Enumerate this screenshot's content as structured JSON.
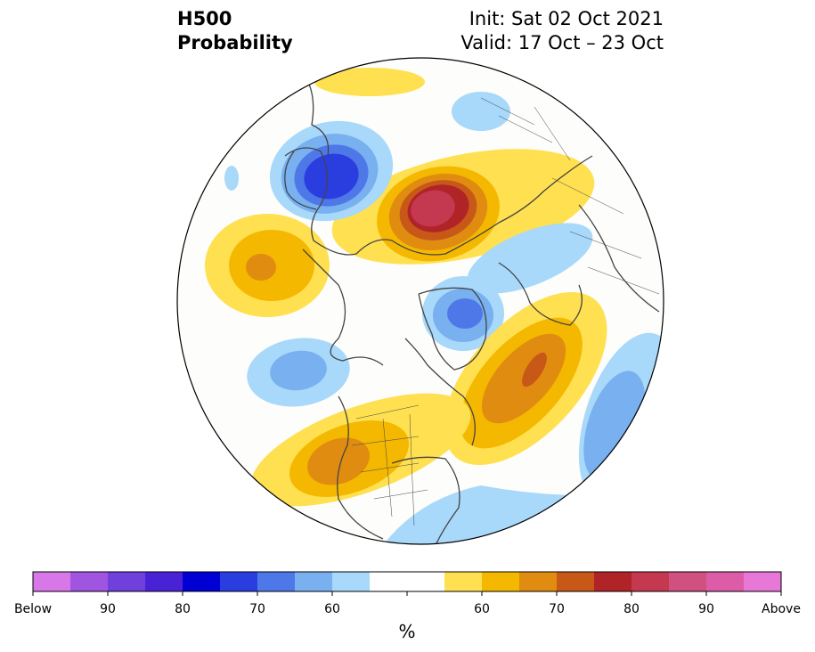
{
  "title": {
    "line1": "H500",
    "line2": "Probability"
  },
  "init": {
    "line1": "Init: Sat 02 Oct 2021",
    "line2": "Valid: 17 Oct – 23 Oct"
  },
  "colorbar": {
    "colors": [
      "#d878e8",
      "#a055e0",
      "#7040dc",
      "#4a22d6",
      "#0000d4",
      "#2a3ee0",
      "#4e78e8",
      "#78b0f0",
      "#a8d8fa",
      "#ffffff",
      "#ffffff",
      "#ffe050",
      "#f4b800",
      "#e08c10",
      "#c85818",
      "#b02428",
      "#c43850",
      "#d05080",
      "#dc5ca8",
      "#e878d8"
    ],
    "labels": [
      "Below",
      "90",
      "80",
      "70",
      "60",
      "60",
      "70",
      "80",
      "90",
      "Above"
    ],
    "unit": "%"
  },
  "palette": {
    "yellow": "#ffe050",
    "gold": "#f4b800",
    "orange": "#e08c10",
    "darkorange": "#c85818",
    "red": "#b02428",
    "crimson": "#c43850",
    "lightblue": "#a8d8fa",
    "blue": "#78b0f0",
    "midblue": "#4e78e8",
    "deepblue": "#2a3ee0",
    "land": "#444444"
  }
}
